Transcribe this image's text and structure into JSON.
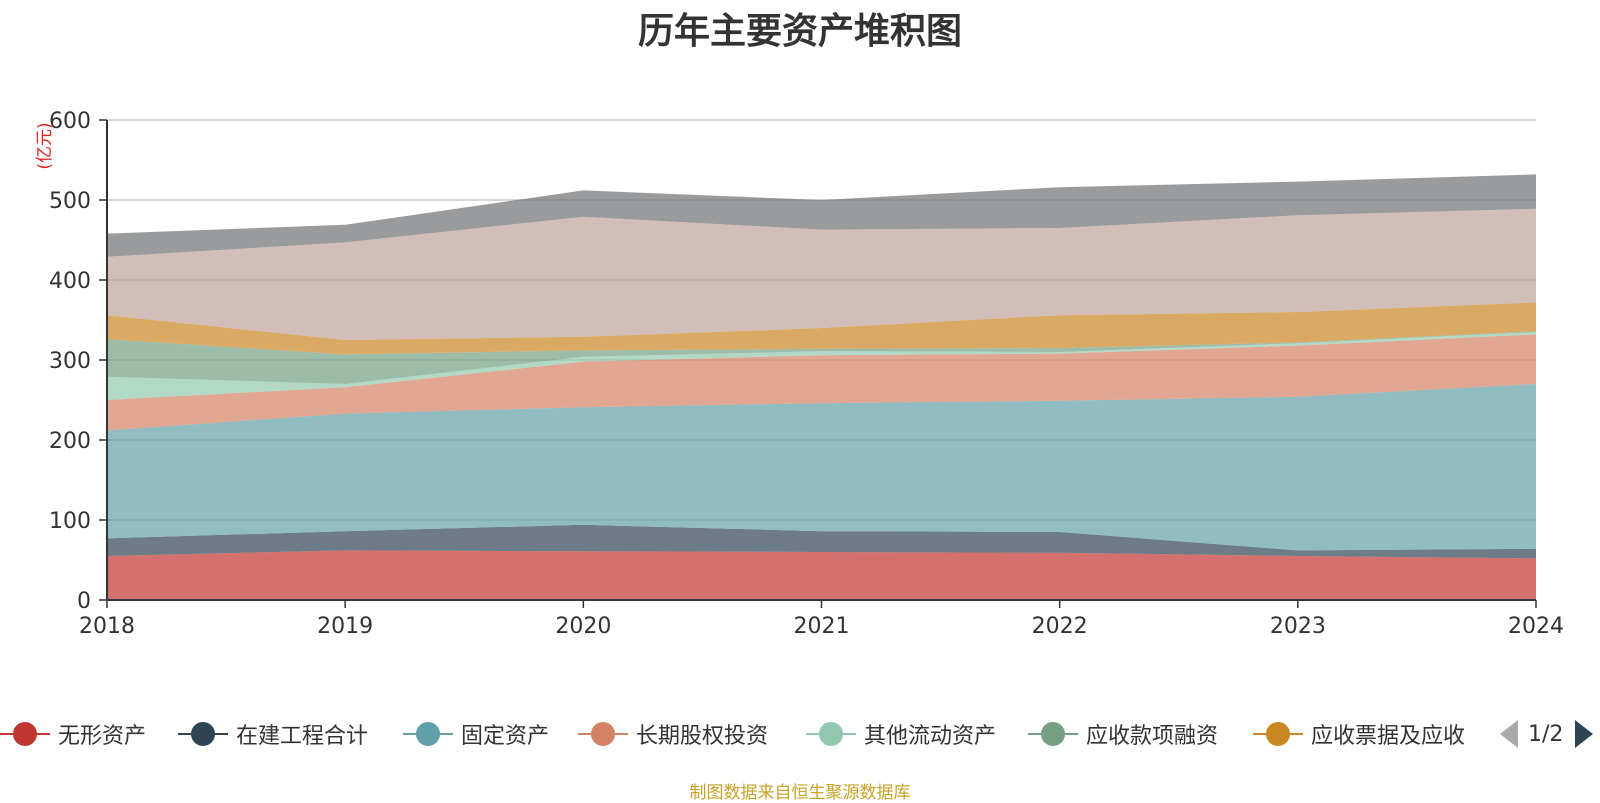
{
  "chart_data": {
    "type": "area",
    "stacked": true,
    "title": "历年主要资产堆积图",
    "unit_label": "(亿元)",
    "x": [
      "2018",
      "2019",
      "2020",
      "2021",
      "2022",
      "2023",
      "2024"
    ],
    "ylim": [
      0,
      600
    ],
    "yticks": [
      "0",
      "100",
      "200",
      "300",
      "400",
      "500",
      "600"
    ],
    "grid": true,
    "series": [
      {
        "name": "无形资产",
        "color": "#c23531",
        "values": [
          55,
          62,
          61,
          60,
          59,
          55,
          52
        ]
      },
      {
        "name": "在建工程合计",
        "color": "#2f4554",
        "values": [
          22,
          24,
          33,
          26,
          26,
          7,
          12
        ]
      },
      {
        "name": "固定资产",
        "color": "#61a0a8",
        "values": [
          135,
          147,
          147,
          160,
          164,
          192,
          206
        ]
      },
      {
        "name": "长期股权投资",
        "color": "#d48265",
        "values": [
          38,
          33,
          57,
          60,
          59,
          64,
          62
        ]
      },
      {
        "name": "其他流动资产",
        "color": "#91c7ae",
        "values": [
          29,
          4,
          6,
          5,
          2,
          3,
          3
        ]
      },
      {
        "name": "应收款项融资",
        "color": "#749f83",
        "values": [
          47,
          37,
          8,
          3,
          5,
          1,
          1
        ]
      },
      {
        "name": "应收票据及应收",
        "color": "#ca8622",
        "values": [
          30,
          18,
          17,
          26,
          41,
          38,
          36
        ]
      },
      {
        "name": "",
        "color": "#bda29a",
        "values": [
          73,
          122,
          150,
          123,
          109,
          121,
          117
        ]
      },
      {
        "name": "",
        "color": "#6e7074",
        "values": [
          29,
          22,
          33,
          37,
          51,
          42,
          43
        ]
      }
    ]
  },
  "legend": {
    "items": [
      {
        "label": "无形资产",
        "color": "#c23531"
      },
      {
        "label": "在建工程合计",
        "color": "#2f4554"
      },
      {
        "label": "固定资产",
        "color": "#61a0a8"
      },
      {
        "label": "长期股权投资",
        "color": "#d48265"
      },
      {
        "label": "其他流动资产",
        "color": "#91c7ae"
      },
      {
        "label": "应收款项融资",
        "color": "#749f83"
      },
      {
        "label": "应收票据及应收",
        "color": "#ca8622"
      }
    ],
    "page_indicator": "1/2"
  },
  "source_note": "制图数据来自恒生聚源数据库"
}
